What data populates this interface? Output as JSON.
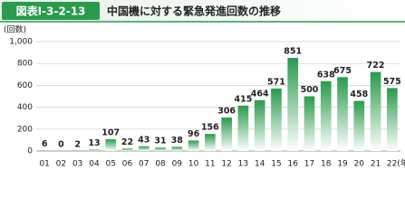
{
  "chart_data": {
    "type": "bar",
    "badge": "図表Ⅰ-3-2-13",
    "title": "中国機に対する緊急発進回数の推移",
    "y_label": "(回数)",
    "categories": [
      "01",
      "02",
      "03",
      "04",
      "05",
      "06",
      "07",
      "08",
      "09",
      "10",
      "11",
      "12",
      "13",
      "14",
      "15",
      "16",
      "17",
      "18",
      "19",
      "20",
      "21",
      "22(年度)"
    ],
    "values": [
      6,
      0,
      2,
      13,
      107,
      22,
      43,
      31,
      38,
      96,
      156,
      306,
      415,
      464,
      571,
      851,
      500,
      638,
      675,
      458,
      722,
      575
    ],
    "color": "#2a9a4c",
    "ylim": [
      0,
      1000
    ],
    "yticks": [
      0,
      200,
      400,
      600,
      800,
      {
        "value": 1000,
        "label": "1,000"
      }
    ],
    "grid": true
  }
}
